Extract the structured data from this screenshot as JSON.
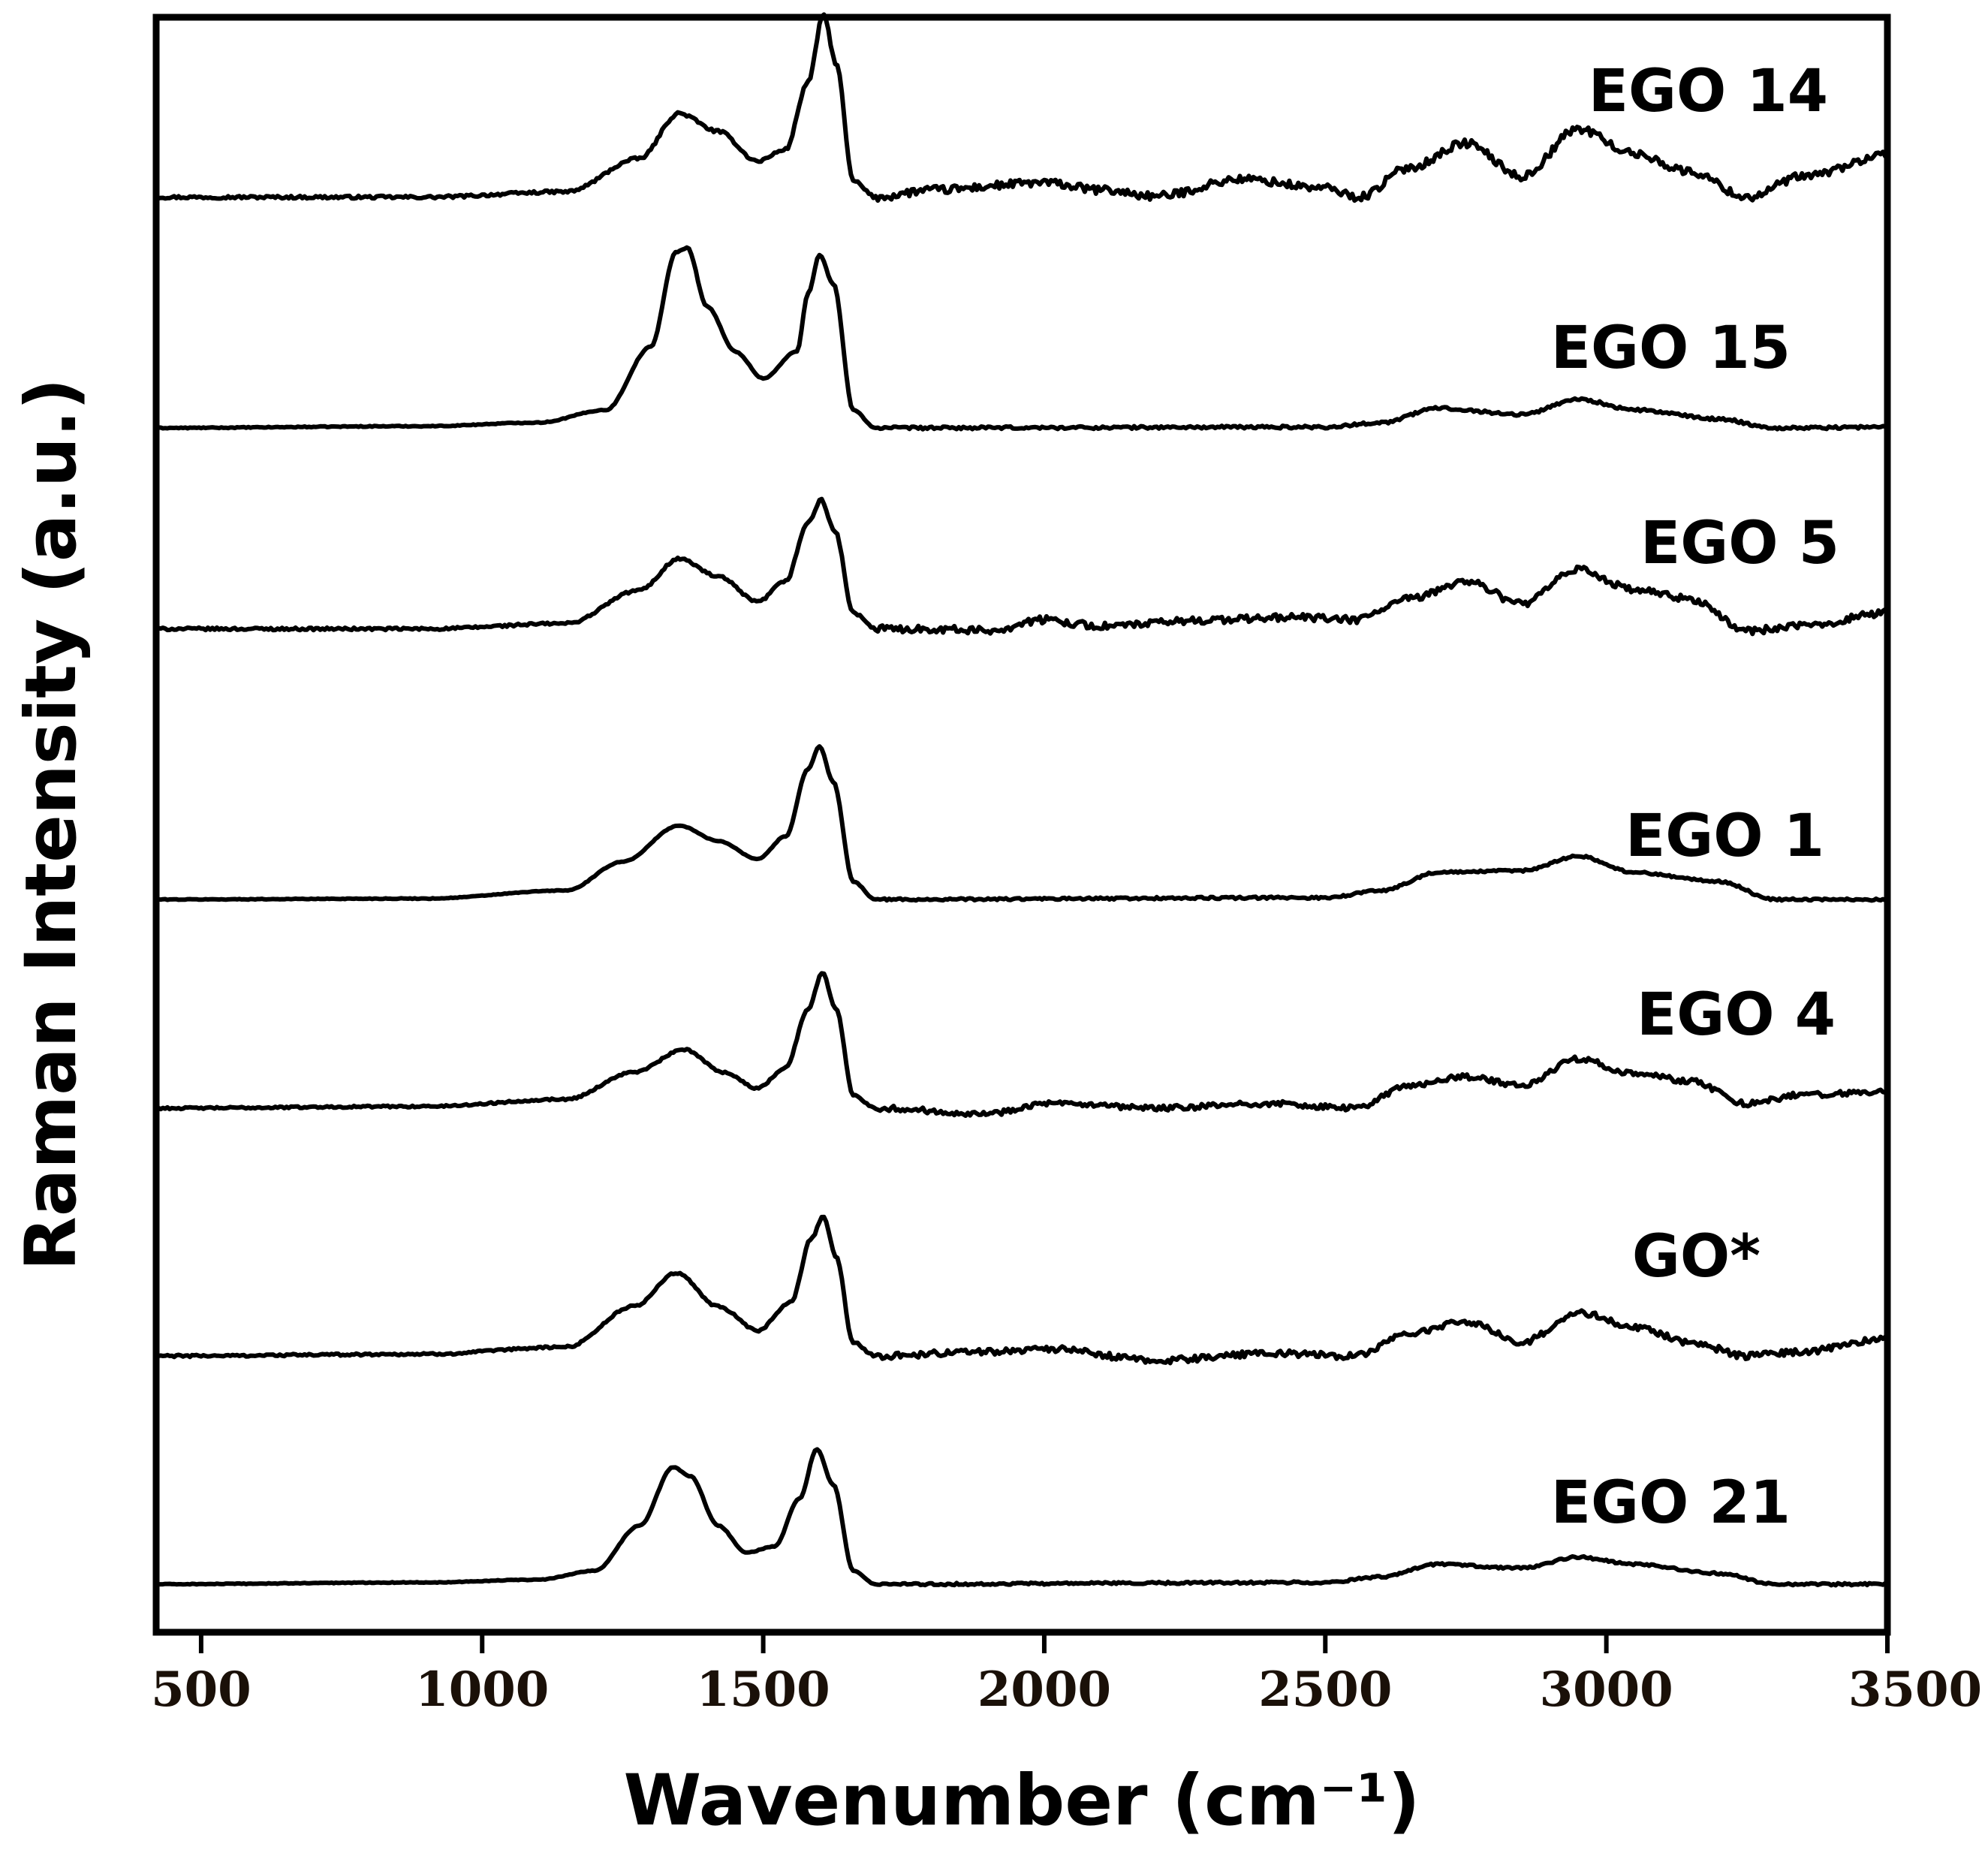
{
  "chart_data": {
    "type": "line",
    "title": "",
    "xlabel": "Wavenumber (cm⁻¹)",
    "ylabel": "Raman Intensity (a.u.)",
    "xlim": [
      420,
      3500
    ],
    "x_ticks": [
      500,
      1000,
      1500,
      2000,
      2500,
      3000,
      3500
    ],
    "x_tick_labels": [
      "500",
      "1000",
      "1500",
      "2000",
      "2500",
      "3000",
      "3500"
    ],
    "y_ticks": [],
    "grid": false,
    "legend": "inline labels, right side",
    "series": [
      {
        "name": "EGO 14",
        "label": "EGO 14",
        "offset": 6,
        "points": [
          [
            420,
            0.02
          ],
          [
            900,
            0.02
          ],
          [
            1150,
            0.08
          ],
          [
            1280,
            0.45
          ],
          [
            1350,
            0.95
          ],
          [
            1420,
            0.75
          ],
          [
            1490,
            0.42
          ],
          [
            1540,
            0.55
          ],
          [
            1580,
            1.3
          ],
          [
            1607,
            2.05
          ],
          [
            1630,
            1.5
          ],
          [
            1660,
            0.2
          ],
          [
            1700,
            0.02
          ],
          [
            1800,
            0.1
          ],
          [
            2000,
            0.18
          ],
          [
            2100,
            0.1
          ],
          [
            2200,
            0.03
          ],
          [
            2350,
            0.22
          ],
          [
            2500,
            0.12
          ],
          [
            2560,
            0.02
          ],
          [
            2650,
            0.35
          ],
          [
            2750,
            0.62
          ],
          [
            2850,
            0.25
          ],
          [
            2950,
            0.78
          ],
          [
            3050,
            0.5
          ],
          [
            3150,
            0.3
          ],
          [
            3250,
            0.02
          ],
          [
            3350,
            0.25
          ],
          [
            3500,
            0.48
          ]
        ],
        "noise": 0.045
      },
      {
        "name": "EGO 15",
        "label": "EGO 15",
        "offset": 5,
        "points": [
          [
            420,
            0.0
          ],
          [
            900,
            0.02
          ],
          [
            1100,
            0.06
          ],
          [
            1220,
            0.2
          ],
          [
            1300,
            0.9
          ],
          [
            1345,
            1.95
          ],
          [
            1365,
            2.0
          ],
          [
            1400,
            1.35
          ],
          [
            1450,
            0.85
          ],
          [
            1500,
            0.55
          ],
          [
            1560,
            0.85
          ],
          [
            1580,
            1.5
          ],
          [
            1600,
            1.92
          ],
          [
            1625,
            1.6
          ],
          [
            1660,
            0.2
          ],
          [
            1700,
            0.0
          ],
          [
            2500,
            0.01
          ],
          [
            2600,
            0.06
          ],
          [
            2700,
            0.22
          ],
          [
            2850,
            0.15
          ],
          [
            2950,
            0.32
          ],
          [
            3050,
            0.2
          ],
          [
            3200,
            0.1
          ],
          [
            3300,
            0.0
          ],
          [
            3500,
            0.01
          ]
        ],
        "noise": 0.015
      },
      {
        "name": "EGO 5",
        "label": "EGO 5",
        "offset": 4,
        "points": [
          [
            420,
            0.02
          ],
          [
            900,
            0.02
          ],
          [
            1150,
            0.08
          ],
          [
            1280,
            0.45
          ],
          [
            1350,
            0.8
          ],
          [
            1420,
            0.6
          ],
          [
            1490,
            0.32
          ],
          [
            1540,
            0.55
          ],
          [
            1580,
            1.2
          ],
          [
            1603,
            1.45
          ],
          [
            1628,
            1.1
          ],
          [
            1660,
            0.2
          ],
          [
            1700,
            0.02
          ],
          [
            1800,
            0.02
          ],
          [
            1900,
            0.0
          ],
          [
            2000,
            0.12
          ],
          [
            2100,
            0.05
          ],
          [
            2300,
            0.12
          ],
          [
            2450,
            0.15
          ],
          [
            2550,
            0.12
          ],
          [
            2650,
            0.35
          ],
          [
            2750,
            0.55
          ],
          [
            2850,
            0.3
          ],
          [
            2950,
            0.68
          ],
          [
            3050,
            0.45
          ],
          [
            3150,
            0.35
          ],
          [
            3250,
            0.0
          ],
          [
            3350,
            0.05
          ],
          [
            3500,
            0.2
          ]
        ],
        "noise": 0.04
      },
      {
        "name": "EGO 1",
        "label": "EGO 1",
        "offset": 3,
        "points": [
          [
            420,
            0.0
          ],
          [
            900,
            0.01
          ],
          [
            1150,
            0.1
          ],
          [
            1250,
            0.42
          ],
          [
            1350,
            0.82
          ],
          [
            1420,
            0.65
          ],
          [
            1490,
            0.45
          ],
          [
            1540,
            0.7
          ],
          [
            1580,
            1.45
          ],
          [
            1600,
            1.7
          ],
          [
            1625,
            1.3
          ],
          [
            1660,
            0.2
          ],
          [
            1700,
            0.0
          ],
          [
            2500,
            0.02
          ],
          [
            2600,
            0.1
          ],
          [
            2700,
            0.3
          ],
          [
            2850,
            0.32
          ],
          [
            2950,
            0.48
          ],
          [
            3050,
            0.3
          ],
          [
            3200,
            0.2
          ],
          [
            3300,
            0.0
          ],
          [
            3500,
            0.0
          ]
        ],
        "noise": 0.012
      },
      {
        "name": "EGO 4",
        "label": "EGO 4",
        "offset": 2,
        "points": [
          [
            420,
            0.0
          ],
          [
            900,
            0.02
          ],
          [
            1150,
            0.1
          ],
          [
            1270,
            0.4
          ],
          [
            1360,
            0.65
          ],
          [
            1430,
            0.4
          ],
          [
            1490,
            0.22
          ],
          [
            1540,
            0.45
          ],
          [
            1580,
            1.1
          ],
          [
            1605,
            1.5
          ],
          [
            1630,
            1.1
          ],
          [
            1660,
            0.15
          ],
          [
            1700,
            0.0
          ],
          [
            1900,
            -0.06
          ],
          [
            2000,
            0.05
          ],
          [
            2200,
            0.0
          ],
          [
            2400,
            0.05
          ],
          [
            2550,
            0.0
          ],
          [
            2650,
            0.25
          ],
          [
            2750,
            0.35
          ],
          [
            2850,
            0.25
          ],
          [
            2950,
            0.55
          ],
          [
            3050,
            0.38
          ],
          [
            3150,
            0.3
          ],
          [
            3250,
            0.05
          ],
          [
            3350,
            0.15
          ],
          [
            3500,
            0.18
          ]
        ],
        "noise": 0.03
      },
      {
        "name": "GO*",
        "label": "GO*",
        "offset": 1,
        "points": [
          [
            420,
            0.0
          ],
          [
            900,
            0.02
          ],
          [
            1150,
            0.1
          ],
          [
            1270,
            0.55
          ],
          [
            1345,
            0.92
          ],
          [
            1420,
            0.55
          ],
          [
            1490,
            0.28
          ],
          [
            1550,
            0.6
          ],
          [
            1585,
            1.3
          ],
          [
            1607,
            1.55
          ],
          [
            1630,
            1.1
          ],
          [
            1660,
            0.15
          ],
          [
            1700,
            0.0
          ],
          [
            1900,
            0.05
          ],
          [
            2000,
            0.08
          ],
          [
            2200,
            -0.05
          ],
          [
            2400,
            0.03
          ],
          [
            2550,
            0.0
          ],
          [
            2650,
            0.25
          ],
          [
            2750,
            0.38
          ],
          [
            2850,
            0.15
          ],
          [
            2950,
            0.48
          ],
          [
            3050,
            0.32
          ],
          [
            3150,
            0.15
          ],
          [
            3250,
            0.0
          ],
          [
            3350,
            0.05
          ],
          [
            3500,
            0.2
          ]
        ],
        "noise": 0.035
      },
      {
        "name": "EGO 21",
        "label": "EGO 21",
        "offset": 0,
        "points": [
          [
            420,
            0.0
          ],
          [
            900,
            0.02
          ],
          [
            1100,
            0.05
          ],
          [
            1200,
            0.15
          ],
          [
            1280,
            0.65
          ],
          [
            1340,
            1.3
          ],
          [
            1370,
            1.2
          ],
          [
            1420,
            0.65
          ],
          [
            1470,
            0.35
          ],
          [
            1520,
            0.42
          ],
          [
            1565,
            0.95
          ],
          [
            1595,
            1.5
          ],
          [
            1625,
            1.1
          ],
          [
            1660,
            0.15
          ],
          [
            1700,
            0.0
          ],
          [
            2500,
            0.02
          ],
          [
            2600,
            0.08
          ],
          [
            2700,
            0.22
          ],
          [
            2850,
            0.18
          ],
          [
            2950,
            0.3
          ],
          [
            3050,
            0.22
          ],
          [
            3200,
            0.12
          ],
          [
            3300,
            0.0
          ],
          [
            3500,
            0.0
          ]
        ],
        "noise": 0.012
      }
    ]
  }
}
